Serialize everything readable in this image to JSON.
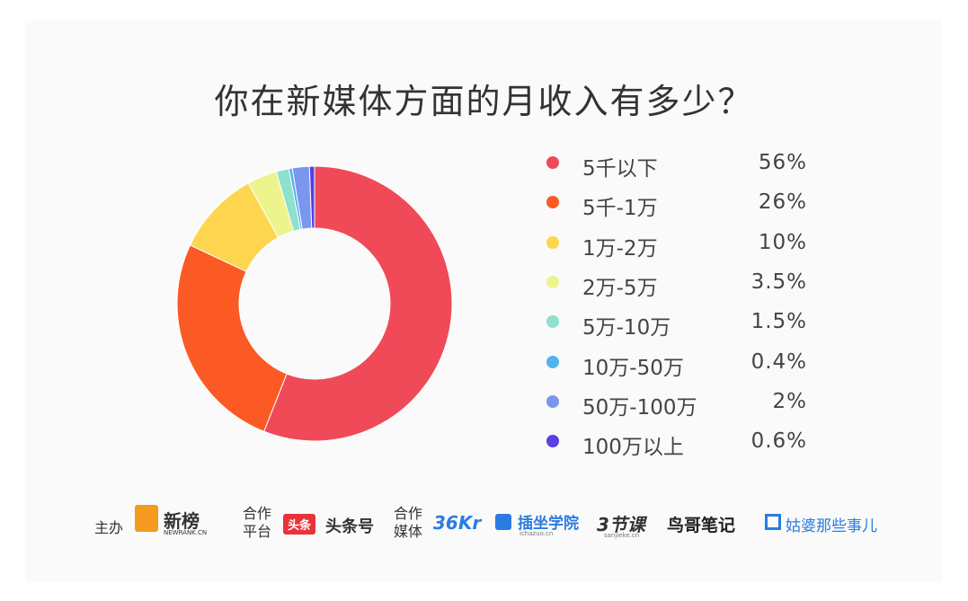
{
  "title": "你在新媒体方面的月收入有多少？",
  "chart_data": {
    "type": "pie",
    "title": "你在新媒体方面的月收入有多少？",
    "categories": [
      "5千以下",
      "5千-1万",
      "1万-2万",
      "2万-5万",
      "5万-10万",
      "10万-50万",
      "50万-100万",
      "100万以上"
    ],
    "values": [
      56,
      26,
      10,
      3.5,
      1.5,
      0.4,
      2,
      0.6
    ],
    "value_labels": [
      "56%",
      "26%",
      "10%",
      "3.5%",
      "1.5%",
      "0.4%",
      "2%",
      "0.6%"
    ],
    "colors": [
      "#f04a59",
      "#fb5a25",
      "#fdd54e",
      "#edf48c",
      "#8fe0cc",
      "#52b3ee",
      "#7a96ee",
      "#5a3ee6"
    ],
    "style": "donut",
    "legend": "right"
  },
  "footer": {
    "host_label": "主办",
    "host_logo": "新榜",
    "host_logo_sub": "NEWRANK.CN",
    "platform_label_1": "合作",
    "platform_label_2": "平台",
    "platform_badge": "头条",
    "platform_name": "头条号",
    "media_label_1": "合作",
    "media_label_2": "媒体",
    "media": [
      "36Kr",
      "插坐学院",
      "3节课",
      "鸟哥笔记",
      "姑婆那些事儿"
    ],
    "media_sub_1": "ichazuo.cn",
    "media_sub_2": "sanjieke.cn"
  }
}
